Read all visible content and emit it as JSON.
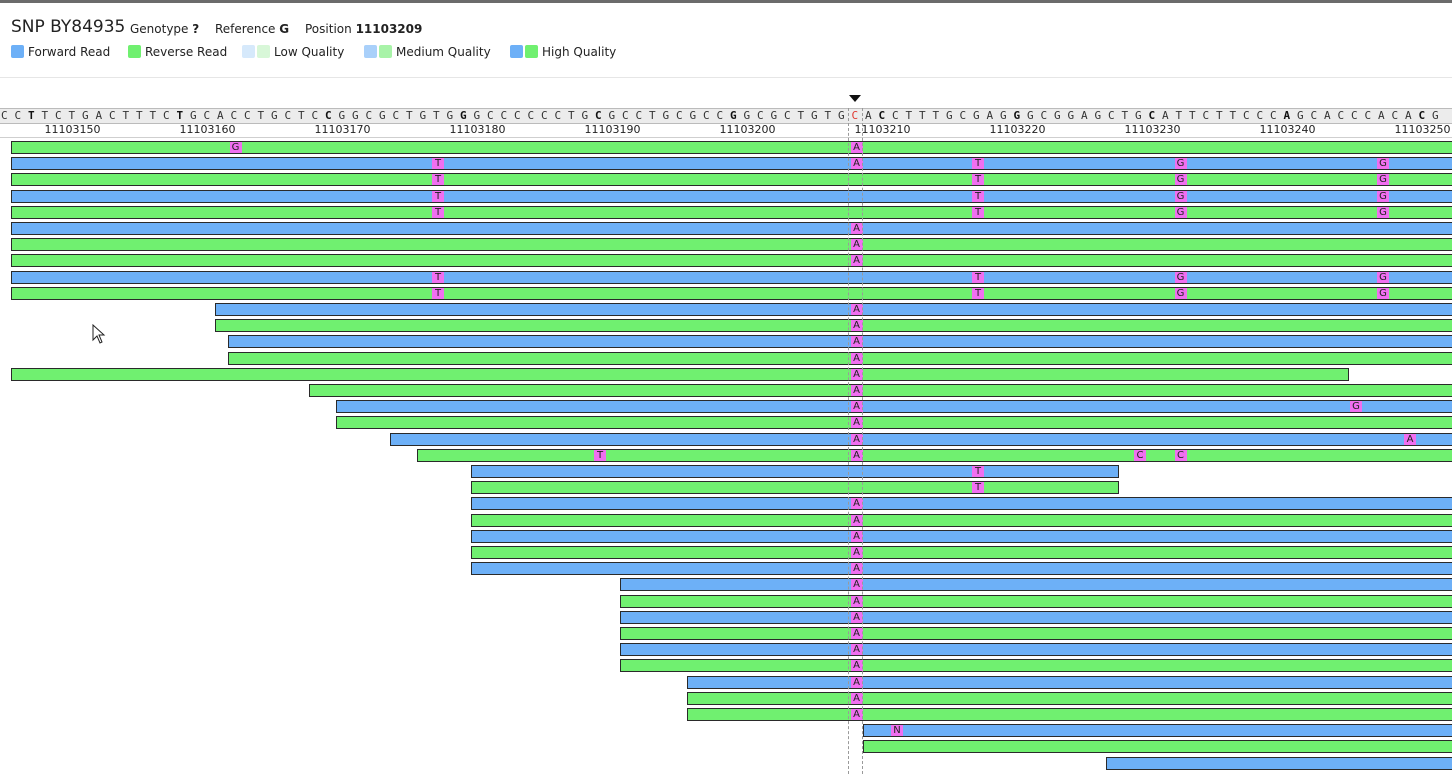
{
  "header": {
    "title": "SNP BY84935",
    "genotype_label": "Genotype",
    "genotype_value": "?",
    "reference_label": "Reference",
    "reference_value": "G",
    "position_label": "Position",
    "position_value": "11103209"
  },
  "legend": [
    {
      "label": "Forward Read",
      "colors": [
        "#6db0f7"
      ]
    },
    {
      "label": "Reverse Read",
      "colors": [
        "#70f070"
      ]
    },
    {
      "label": "Low Quality",
      "colors": [
        "#d6e9fb",
        "#d8f7d8"
      ]
    },
    {
      "label": "Medium Quality",
      "colors": [
        "#a9d0fa",
        "#a8f3a8"
      ]
    },
    {
      "label": "High Quality",
      "colors": [
        "#6db0f7",
        "#70f070"
      ]
    }
  ],
  "reference_sequence": "CCTTCTGACTTTCTGCACCTGCTCCGGCGCTGTGGGCCCCCCTGCGCCTGCGCCGGCGCTGTGCACCTTTGCGAGGGCGGAGCTGCATTCTTCCCAGCACCCACACG",
  "coordinates": [
    "11103150",
    "11103160",
    "11103170",
    "11103180",
    "11103190",
    "11103200",
    "11103210",
    "11103220",
    "11103230",
    "11103240",
    "11103250"
  ],
  "colors": {
    "forward": "#6db0f7",
    "reverse": "#70f070",
    "mismatch": "#f06ff0",
    "snp_ref": "#e0372f"
  },
  "reads": [
    {
      "strand": "rev",
      "start": 11103142,
      "end": 11103299,
      "mismatches": [
        {
          "pos": 11103163,
          "base": "G"
        },
        {
          "pos": 11103209,
          "base": "A"
        }
      ]
    },
    {
      "strand": "fwd",
      "start": 11103142,
      "end": 11103299,
      "mismatches": [
        {
          "pos": 11103178,
          "base": "T"
        },
        {
          "pos": 11103209,
          "base": "A"
        },
        {
          "pos": 11103218,
          "base": "T"
        },
        {
          "pos": 11103233,
          "base": "G"
        },
        {
          "pos": 11103248,
          "base": "G"
        }
      ]
    },
    {
      "strand": "rev",
      "start": 11103142,
      "end": 11103299,
      "mismatches": [
        {
          "pos": 11103178,
          "base": "T"
        },
        {
          "pos": 11103218,
          "base": "T"
        },
        {
          "pos": 11103233,
          "base": "G"
        },
        {
          "pos": 11103248,
          "base": "G"
        }
      ]
    },
    {
      "strand": "fwd",
      "start": 11103142,
      "end": 11103299,
      "mismatches": [
        {
          "pos": 11103178,
          "base": "T"
        },
        {
          "pos": 11103218,
          "base": "T"
        },
        {
          "pos": 11103233,
          "base": "G"
        },
        {
          "pos": 11103248,
          "base": "G"
        }
      ]
    },
    {
      "strand": "rev",
      "start": 11103142,
      "end": 11103299,
      "mismatches": [
        {
          "pos": 11103178,
          "base": "T"
        },
        {
          "pos": 11103218,
          "base": "T"
        },
        {
          "pos": 11103233,
          "base": "G"
        },
        {
          "pos": 11103248,
          "base": "G"
        }
      ]
    },
    {
      "strand": "fwd",
      "start": 11103142,
      "end": 11103299,
      "mismatches": [
        {
          "pos": 11103209,
          "base": "A"
        }
      ]
    },
    {
      "strand": "rev",
      "start": 11103142,
      "end": 11103299,
      "mismatches": [
        {
          "pos": 11103209,
          "base": "A"
        }
      ]
    },
    {
      "strand": "rev",
      "start": 11103142,
      "end": 11103299,
      "mismatches": [
        {
          "pos": 11103209,
          "base": "A"
        }
      ]
    },
    {
      "strand": "fwd",
      "start": 11103142,
      "end": 11103299,
      "mismatches": [
        {
          "pos": 11103178,
          "base": "T"
        },
        {
          "pos": 11103218,
          "base": "T"
        },
        {
          "pos": 11103233,
          "base": "G"
        },
        {
          "pos": 11103248,
          "base": "G"
        }
      ]
    },
    {
      "strand": "rev",
      "start": 11103142,
      "end": 11103299,
      "mismatches": [
        {
          "pos": 11103178,
          "base": "T"
        },
        {
          "pos": 11103218,
          "base": "T"
        },
        {
          "pos": 11103233,
          "base": "G"
        },
        {
          "pos": 11103248,
          "base": "G"
        }
      ]
    },
    {
      "strand": "fwd",
      "start": 11103162,
      "end": 11103299,
      "mismatches": [
        {
          "pos": 11103209,
          "base": "A"
        }
      ]
    },
    {
      "strand": "rev",
      "start": 11103162,
      "end": 11103299,
      "mismatches": [
        {
          "pos": 11103209,
          "base": "A"
        }
      ]
    },
    {
      "strand": "fwd",
      "start": 11103163,
      "end": 11103299,
      "mismatches": [
        {
          "pos": 11103209,
          "base": "A"
        }
      ]
    },
    {
      "strand": "rev",
      "start": 11103163,
      "end": 11103299,
      "mismatches": [
        {
          "pos": 11103209,
          "base": "A"
        }
      ]
    },
    {
      "strand": "rev",
      "start": 11103142,
      "end": 11103245,
      "mismatches": [
        {
          "pos": 11103209,
          "base": "A"
        }
      ]
    },
    {
      "strand": "rev",
      "start": 11103169,
      "end": 11103299,
      "mismatches": [
        {
          "pos": 11103209,
          "base": "A"
        }
      ]
    },
    {
      "strand": "fwd",
      "start": 11103171,
      "end": 11103299,
      "mismatches": [
        {
          "pos": 11103209,
          "base": "A"
        },
        {
          "pos": 11103246,
          "base": "G"
        }
      ]
    },
    {
      "strand": "rev",
      "start": 11103171,
      "end": 11103299,
      "mismatches": [
        {
          "pos": 11103209,
          "base": "A"
        }
      ]
    },
    {
      "strand": "fwd",
      "start": 11103175,
      "end": 11103299,
      "mismatches": [
        {
          "pos": 11103209,
          "base": "A"
        },
        {
          "pos": 11103250,
          "base": "A"
        }
      ]
    },
    {
      "strand": "rev",
      "start": 11103177,
      "end": 11103299,
      "mismatches": [
        {
          "pos": 11103190,
          "base": "T"
        },
        {
          "pos": 11103209,
          "base": "A"
        },
        {
          "pos": 11103230,
          "base": "C"
        },
        {
          "pos": 11103233,
          "base": "C"
        }
      ]
    },
    {
      "strand": "fwd",
      "start": 11103181,
      "end": 11103228,
      "mismatches": [
        {
          "pos": 11103218,
          "base": "T"
        }
      ]
    },
    {
      "strand": "rev",
      "start": 11103181,
      "end": 11103228,
      "mismatches": [
        {
          "pos": 11103218,
          "base": "T"
        }
      ]
    },
    {
      "strand": "fwd",
      "start": 11103181,
      "end": 11103299,
      "mismatches": [
        {
          "pos": 11103209,
          "base": "A"
        }
      ]
    },
    {
      "strand": "rev",
      "start": 11103181,
      "end": 11103299,
      "mismatches": [
        {
          "pos": 11103209,
          "base": "A"
        }
      ]
    },
    {
      "strand": "fwd",
      "start": 11103181,
      "end": 11103299,
      "mismatches": [
        {
          "pos": 11103209,
          "base": "A"
        }
      ]
    },
    {
      "strand": "rev",
      "start": 11103181,
      "end": 11103299,
      "mismatches": [
        {
          "pos": 11103209,
          "base": "A"
        }
      ]
    },
    {
      "strand": "fwd",
      "start": 11103181,
      "end": 11103299,
      "mismatches": [
        {
          "pos": 11103209,
          "base": "A"
        }
      ]
    },
    {
      "strand": "fwd",
      "start": 11103192,
      "end": 11103299,
      "mismatches": [
        {
          "pos": 11103209,
          "base": "A"
        }
      ]
    },
    {
      "strand": "rev",
      "start": 11103192,
      "end": 11103299,
      "mismatches": [
        {
          "pos": 11103209,
          "base": "A"
        }
      ]
    },
    {
      "strand": "fwd",
      "start": 11103192,
      "end": 11103299,
      "mismatches": [
        {
          "pos": 11103209,
          "base": "A"
        }
      ]
    },
    {
      "strand": "rev",
      "start": 11103192,
      "end": 11103299,
      "mismatches": [
        {
          "pos": 11103209,
          "base": "A"
        }
      ]
    },
    {
      "strand": "fwd",
      "start": 11103192,
      "end": 11103299,
      "mismatches": [
        {
          "pos": 11103209,
          "base": "A"
        }
      ]
    },
    {
      "strand": "rev",
      "start": 11103192,
      "end": 11103299,
      "mismatches": [
        {
          "pos": 11103209,
          "base": "A"
        }
      ]
    },
    {
      "strand": "fwd",
      "start": 11103197,
      "end": 11103299,
      "mismatches": [
        {
          "pos": 11103209,
          "base": "A"
        }
      ]
    },
    {
      "strand": "rev",
      "start": 11103197,
      "end": 11103299,
      "mismatches": [
        {
          "pos": 11103209,
          "base": "A"
        }
      ]
    },
    {
      "strand": "rev",
      "start": 11103197,
      "end": 11103299,
      "mismatches": [
        {
          "pos": 11103209,
          "base": "A"
        }
      ]
    },
    {
      "strand": "fwd",
      "start": 11103210,
      "end": 11103299,
      "mismatches": [
        {
          "pos": 11103212,
          "base": "N"
        }
      ]
    },
    {
      "strand": "rev",
      "start": 11103210,
      "end": 11103299,
      "mismatches": []
    },
    {
      "strand": "fwd",
      "start": 11103228,
      "end": 11103299,
      "mismatches": []
    }
  ]
}
